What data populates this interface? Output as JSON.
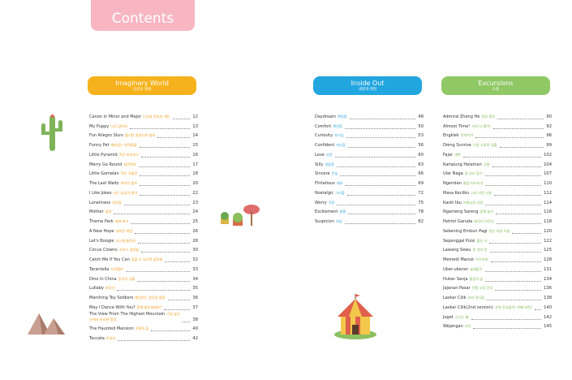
{
  "header": {
    "title": "Contents"
  },
  "sections": [
    {
      "title": "Imaginary World",
      "subtitle": "상상의 세계",
      "entries": [
        {
          "title": "Canon in Minor and Major",
          "subtitle": "단조와 장조의 캐논",
          "page": 12
        },
        {
          "title": "My Puppy",
          "subtitle": "나의 강아지",
          "page": 13
        },
        {
          "title": "Fun Allegro Slurs",
          "subtitle": "즐거운 알레그로 슬러",
          "page": 14
        },
        {
          "title": "Funny Pet",
          "subtitle": "재미있는 반려동물",
          "page": 15
        },
        {
          "title": "Little Pyramid",
          "subtitle": "작은 피라미드",
          "page": 16
        },
        {
          "title": "Merry Go Round",
          "subtitle": "회전목마",
          "page": 17
        },
        {
          "title": "Little Gamelan",
          "subtitle": "작은 가믈란",
          "page": 18
        },
        {
          "title": "The Last Waltz",
          "subtitle": "마지막 왈츠",
          "page": 20
        },
        {
          "title": "I Like Jokes",
          "subtitle": "나는 농담이 좋아",
          "page": 22
        },
        {
          "title": "Loneliness",
          "subtitle": "외로움",
          "page": 23
        },
        {
          "title": "Mother",
          "subtitle": "엄마",
          "page": 24
        },
        {
          "title": "Theme Park",
          "subtitle": "테마 파크",
          "page": 25
        },
        {
          "title": "A New Hope",
          "subtitle": "새로운 희망",
          "page": 26
        },
        {
          "title": "Let's Boogie",
          "subtitle": "신나게 춤추자",
          "page": 28
        },
        {
          "title": "Circus Clowns",
          "subtitle": "서커스 광대들",
          "page": 30
        },
        {
          "title": "Catch Me If You Can",
          "subtitle": "잡을 수 있으면 잡아봐",
          "page": 32
        },
        {
          "title": "Tarantella",
          "subtitle": "타란텔라",
          "page": 33
        },
        {
          "title": "Dino In China",
          "subtitle": "중국의 공룡",
          "page": 34
        },
        {
          "title": "Lullaby",
          "subtitle": "자장가",
          "page": 35
        },
        {
          "title": "Marching Toy Soldiers",
          "subtitle": "행진하는 장난감 병정",
          "page": 36
        },
        {
          "title": "May I Dance With You?",
          "subtitle": "함께 춤추실래요?",
          "page": 37
        },
        {
          "title": "The View From The Highest Mountain",
          "subtitle": "가장 높은 산에서 바라본 풍경",
          "page": 38
        },
        {
          "title": "The Haunted Mansion",
          "subtitle": "유령의 집",
          "page": 40
        },
        {
          "title": "Toccata",
          "subtitle": "토카타",
          "page": 42
        }
      ]
    },
    {
      "title": "Inside Out",
      "subtitle": "내면과 외면",
      "entries": [
        {
          "title": "Daydream",
          "subtitle": "백일몽",
          "page": 48
        },
        {
          "title": "Comfort",
          "subtitle": "편안함",
          "page": 50
        },
        {
          "title": "Curiosity",
          "subtitle": "호기심",
          "page": 53
        },
        {
          "title": "Confident",
          "subtitle": "자신감",
          "page": 56
        },
        {
          "title": "Love",
          "subtitle": "사랑",
          "page": 60
        },
        {
          "title": "Silly",
          "subtitle": "엉뚱함",
          "page": 63
        },
        {
          "title": "Sincere",
          "subtitle": "진심",
          "page": 66
        },
        {
          "title": "Flirtatious",
          "subtitle": "애교",
          "page": 69
        },
        {
          "title": "Nostalgic",
          "subtitle": "그리움",
          "page": 72
        },
        {
          "title": "Worry",
          "subtitle": "걱정",
          "page": 75
        },
        {
          "title": "Excitement",
          "subtitle": "설렘",
          "page": 78
        },
        {
          "title": "Suspicion",
          "subtitle": "의심",
          "page": 82
        }
      ]
    },
    {
      "title": "Excursions",
      "subtitle": "소풍",
      "entries": [
        {
          "title": "Admiral Zheng He",
          "subtitle": "정화 제독",
          "page": 90
        },
        {
          "title": "Almost Time!",
          "subtitle": "거의 다 됐어!",
          "page": 92
        },
        {
          "title": "Engklek",
          "subtitle": "땅따먹기",
          "page": 96
        },
        {
          "title": "Dieng Sunrise",
          "subtitle": "디엥 고원의 일출",
          "page": 99
        },
        {
          "title": "Fajar",
          "subtitle": "새벽",
          "page": 102
        },
        {
          "title": "Kampung Halaman",
          "subtitle": "고향",
          "page": 104
        },
        {
          "title": "Ular Naga",
          "subtitle": "용 꼬리 잡기",
          "page": 107
        },
        {
          "title": "Ngeridan",
          "subtitle": "울음 터뜨리기",
          "page": 110
        },
        {
          "title": "Masa Kecilku",
          "subtitle": "나의 어린 시절",
          "page": 112
        },
        {
          "title": "Kasih Ibu",
          "subtitle": "어머니의 사랑",
          "page": 114
        },
        {
          "title": "Ngameng Sareng",
          "subtitle": "함께 놀기",
          "page": 116
        },
        {
          "title": "Patriot Garuda",
          "subtitle": "애국의 가루다",
          "page": 118
        },
        {
          "title": "Sebening Embun Pagi",
          "subtitle": "맑은 아침 이슬",
          "page": 120
        },
        {
          "title": "Sepenggal Puisi",
          "subtitle": "짧은 시",
          "page": 122
        },
        {
          "title": "Lawang Sewu",
          "subtitle": "천 개의 문",
          "page": 125
        },
        {
          "title": "Memedi Manuk",
          "subtitle": "허수아비",
          "page": 128
        },
        {
          "title": "Uber-uberan",
          "subtitle": "술래잡기",
          "page": 131
        },
        {
          "title": "Hutan Senja",
          "subtitle": "황혼의 숲",
          "page": 134
        },
        {
          "title": "Jajanan Pasar",
          "subtitle": "전통 시장 간식",
          "page": 136
        },
        {
          "title": "Laskar Cilik",
          "subtitle": "꼬마 전사들",
          "page": 138
        },
        {
          "title": "Laskar Cilik(2nd version)",
          "subtitle": "꼬마 전사들(두 번째 버전)",
          "page": 140
        },
        {
          "title": "Joget",
          "subtitle": "신나는 춤",
          "page": 142
        },
        {
          "title": "Wejangan",
          "subtitle": "조언",
          "page": 145
        }
      ]
    }
  ]
}
